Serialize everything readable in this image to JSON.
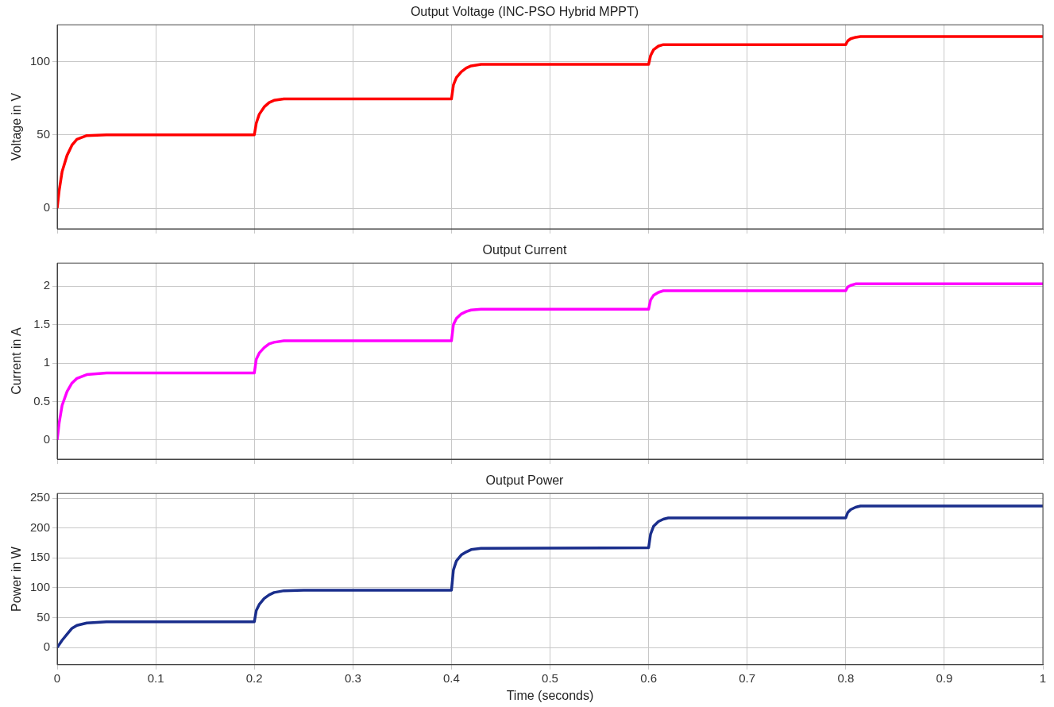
{
  "chart_data": [
    {
      "type": "line",
      "title": "Output Voltage (INC-PSO Hybrid MPPT)",
      "ylabel": "Voltage in V",
      "xlim": [
        0,
        1
      ],
      "xticks": [
        0,
        0.1,
        0.2,
        0.3,
        0.4,
        0.5,
        0.6,
        0.7,
        0.8,
        0.9,
        1
      ],
      "ylim": [
        -14,
        125
      ],
      "yticks": [
        0,
        50,
        100
      ],
      "grid": true,
      "tick_labels": "y",
      "x": [
        0,
        0.002,
        0.005,
        0.01,
        0.015,
        0.02,
        0.03,
        0.05,
        0.2,
        0.202,
        0.205,
        0.21,
        0.215,
        0.22,
        0.23,
        0.4,
        0.402,
        0.405,
        0.41,
        0.415,
        0.42,
        0.43,
        0.6,
        0.602,
        0.605,
        0.61,
        0.615,
        0.8,
        0.802,
        0.805,
        0.81,
        0.815,
        1
      ],
      "series": [
        {
          "color": "#ff0000",
          "values": [
            0,
            12,
            25,
            36,
            43,
            47,
            49.5,
            50,
            50,
            58,
            64,
            69,
            72,
            73.5,
            74.5,
            74.5,
            84,
            89,
            93,
            95.5,
            97,
            98,
            98,
            104,
            108,
            110.5,
            111.5,
            111.5,
            114,
            115.5,
            116.5,
            117,
            117
          ]
        }
      ]
    },
    {
      "type": "line",
      "title": "Output Current",
      "ylabel": "Current in A",
      "xlim": [
        0,
        1
      ],
      "xticks": [
        0,
        0.1,
        0.2,
        0.3,
        0.4,
        0.5,
        0.6,
        0.7,
        0.8,
        0.9,
        1
      ],
      "ylim": [
        -0.25,
        2.3
      ],
      "yticks": [
        0,
        0.5,
        1,
        1.5,
        2
      ],
      "grid": true,
      "tick_labels": "y",
      "x": [
        0,
        0.002,
        0.005,
        0.01,
        0.015,
        0.02,
        0.03,
        0.05,
        0.2,
        0.202,
        0.205,
        0.21,
        0.215,
        0.22,
        0.23,
        0.4,
        0.402,
        0.405,
        0.41,
        0.415,
        0.42,
        0.43,
        0.6,
        0.602,
        0.605,
        0.61,
        0.615,
        0.8,
        0.802,
        0.805,
        0.81,
        1
      ],
      "series": [
        {
          "color": "#ff00ff",
          "values": [
            0,
            0.22,
            0.45,
            0.63,
            0.74,
            0.8,
            0.85,
            0.87,
            0.87,
            1.05,
            1.13,
            1.2,
            1.25,
            1.27,
            1.29,
            1.29,
            1.5,
            1.58,
            1.64,
            1.67,
            1.69,
            1.7,
            1.7,
            1.82,
            1.88,
            1.92,
            1.94,
            1.94,
            1.99,
            2.01,
            2.03,
            2.03
          ]
        }
      ]
    },
    {
      "type": "line",
      "title": "Output Power",
      "xlabel": "Time (seconds)",
      "ylabel": "Power in W",
      "xlim": [
        0,
        1
      ],
      "xticks": [
        0,
        0.1,
        0.2,
        0.3,
        0.4,
        0.5,
        0.6,
        0.7,
        0.8,
        0.9,
        1
      ],
      "ylim": [
        -29,
        258
      ],
      "yticks": [
        0,
        50,
        100,
        150,
        200,
        250
      ],
      "grid": true,
      "x": [
        0,
        0.005,
        0.01,
        0.015,
        0.02,
        0.03,
        0.05,
        0.2,
        0.202,
        0.205,
        0.21,
        0.215,
        0.22,
        0.23,
        0.25,
        0.4,
        0.402,
        0.405,
        0.41,
        0.415,
        0.42,
        0.43,
        0.6,
        0.602,
        0.605,
        0.61,
        0.615,
        0.62,
        0.8,
        0.802,
        0.805,
        0.81,
        0.815,
        1
      ],
      "series": [
        {
          "color": "#1a2e8c",
          "values": [
            0,
            12,
            22,
            32,
            37,
            41,
            43,
            43,
            62,
            72,
            82,
            88,
            92,
            95,
            96,
            96,
            130,
            145,
            155,
            160,
            164,
            166,
            167,
            190,
            203,
            211,
            215,
            217,
            217,
            226,
            231,
            235,
            237,
            237
          ]
        }
      ]
    }
  ]
}
